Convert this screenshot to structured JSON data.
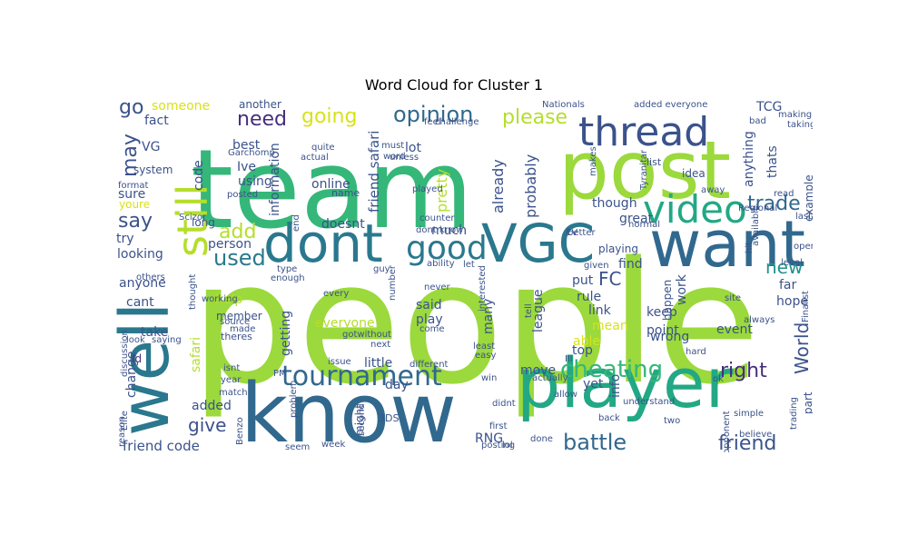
{
  "title": "Word Cloud for Cluster 1",
  "words": [
    {
      "text": "people",
      "color": "#9bd93c"
    },
    {
      "text": "team",
      "color": "#35b779"
    },
    {
      "text": "post",
      "color": "#9bd93c"
    },
    {
      "text": "know",
      "color": "#31688e"
    },
    {
      "text": "player",
      "color": "#22a884"
    },
    {
      "text": "want",
      "color": "#31688e"
    },
    {
      "text": "well",
      "color": "#2a788e"
    },
    {
      "text": "dont",
      "color": "#2a788e"
    },
    {
      "text": "VGC",
      "color": "#2a788e"
    },
    {
      "text": "thread",
      "color": "#3b528b"
    },
    {
      "text": "still",
      "color": "#b5de2b"
    },
    {
      "text": "video",
      "color": "#22a884"
    },
    {
      "text": "good",
      "color": "#2a788e"
    },
    {
      "text": "tournament",
      "color": "#31688e"
    },
    {
      "text": "cheating",
      "color": "#35b779"
    },
    {
      "text": "battle",
      "color": "#31688e"
    },
    {
      "text": "opinion",
      "color": "#31688e"
    },
    {
      "text": "please",
      "color": "#b5de2b"
    },
    {
      "text": "need",
      "color": "#472d7b"
    },
    {
      "text": "going",
      "color": "#d8e219"
    },
    {
      "text": "used",
      "color": "#2a788e"
    },
    {
      "text": "add",
      "color": "#b5de2b"
    },
    {
      "text": "say",
      "color": "#3b528b"
    },
    {
      "text": "may",
      "color": "#3b528b"
    },
    {
      "text": "go",
      "color": "#3b528b"
    },
    {
      "text": "right",
      "color": "#472d7b"
    },
    {
      "text": "friend",
      "color": "#3b528b"
    },
    {
      "text": "trade",
      "color": "#31688e"
    },
    {
      "text": "FC",
      "color": "#3b528b"
    },
    {
      "text": "new",
      "color": "#21918c"
    },
    {
      "text": "World",
      "color": "#3b528b"
    },
    {
      "text": "give",
      "color": "#3b528b"
    },
    {
      "text": "friend code",
      "color": "#3b528b"
    },
    {
      "text": "friend safari",
      "color": "#3b528b"
    },
    {
      "text": "someone",
      "color": "#d8e219"
    },
    {
      "text": "fact",
      "color": "#3b528b"
    },
    {
      "text": "VG",
      "color": "#3b528b"
    },
    {
      "text": "system",
      "color": "#3b528b"
    },
    {
      "text": "sure",
      "color": "#3b528b"
    },
    {
      "text": "youre",
      "color": "#d8e219"
    },
    {
      "text": "try",
      "color": "#3b528b"
    },
    {
      "text": "looking",
      "color": "#3b528b"
    },
    {
      "text": "anyone",
      "color": "#3b528b"
    },
    {
      "text": "cant",
      "color": "#3b528b"
    },
    {
      "text": "take",
      "color": "#3b528b"
    },
    {
      "text": "Id",
      "color": "#472d7b"
    },
    {
      "text": "change",
      "color": "#3b528b"
    },
    {
      "text": "added",
      "color": "#3b528b"
    },
    {
      "text": "safari",
      "color": "#b5de2b"
    },
    {
      "text": "help",
      "color": "#b5de2b"
    },
    {
      "text": "person",
      "color": "#3b528b"
    },
    {
      "text": "long",
      "color": "#3b528b"
    },
    {
      "text": "best",
      "color": "#3b528b"
    },
    {
      "text": "Ive",
      "color": "#3b528b"
    },
    {
      "text": "using",
      "color": "#3b528b"
    },
    {
      "text": "code",
      "color": "#3b528b"
    },
    {
      "text": "another",
      "color": "#3b528b"
    },
    {
      "text": "information",
      "color": "#3b528b"
    },
    {
      "text": "online",
      "color": "#3b528b"
    },
    {
      "text": "doesnt",
      "color": "#3b528b"
    },
    {
      "text": "name",
      "color": "#3b528b"
    },
    {
      "text": "lot",
      "color": "#3b528b"
    },
    {
      "text": "pretty",
      "color": "#b5de2b"
    },
    {
      "text": "already",
      "color": "#3b528b"
    },
    {
      "text": "probably",
      "color": "#3b528b"
    },
    {
      "text": "much",
      "color": "#3b528b"
    },
    {
      "text": "said",
      "color": "#3b528b"
    },
    {
      "text": "play",
      "color": "#3b528b"
    },
    {
      "text": "everyone",
      "color": "#b5de2b"
    },
    {
      "text": "getting",
      "color": "#3b528b"
    },
    {
      "text": "member",
      "color": "#3b528b"
    },
    {
      "text": "theres",
      "color": "#3b528b"
    },
    {
      "text": "many",
      "color": "#3b528b"
    },
    {
      "text": "league",
      "color": "#3b528b"
    },
    {
      "text": "RNG",
      "color": "#3b528b"
    },
    {
      "text": "move",
      "color": "#3b528b"
    },
    {
      "text": "little",
      "color": "#3b528b"
    },
    {
      "text": "day",
      "color": "#3b528b"
    },
    {
      "text": "3DS",
      "color": "#3b528b"
    },
    {
      "text": "yet",
      "color": "#3b528b"
    },
    {
      "text": "info",
      "color": "#3b528b"
    },
    {
      "text": "top",
      "color": "#3b528b"
    },
    {
      "text": "able",
      "color": "#d8e219"
    },
    {
      "text": "mean",
      "color": "#d8e219"
    },
    {
      "text": "point",
      "color": "#3b528b"
    },
    {
      "text": "wrong",
      "color": "#3b528b"
    },
    {
      "text": "keep",
      "color": "#3b528b"
    },
    {
      "text": "link",
      "color": "#3b528b"
    },
    {
      "text": "rule",
      "color": "#3b528b"
    },
    {
      "text": "put",
      "color": "#3b528b"
    },
    {
      "text": "find",
      "color": "#3b528b"
    },
    {
      "text": "playing",
      "color": "#3b528b"
    },
    {
      "text": "great",
      "color": "#3b528b"
    },
    {
      "text": "though",
      "color": "#3b528b"
    },
    {
      "text": "work",
      "color": "#3b528b"
    },
    {
      "text": "happen",
      "color": "#3b528b"
    },
    {
      "text": "event",
      "color": "#3b528b"
    },
    {
      "text": "hope",
      "color": "#3b528b"
    },
    {
      "text": "far",
      "color": "#3b528b"
    },
    {
      "text": "part",
      "color": "#3b528b"
    },
    {
      "text": "example",
      "color": "#3b528b"
    },
    {
      "text": "TCG",
      "color": "#3b528b"
    },
    {
      "text": "thats",
      "color": "#3b528b"
    },
    {
      "text": "anything",
      "color": "#3b528b"
    },
    {
      "text": "idea",
      "color": "#3b528b"
    },
    {
      "text": "list",
      "color": "#3b528b"
    },
    {
      "text": "Garchomp",
      "color": "#3b528b"
    },
    {
      "text": "quite",
      "color": "#3b528b"
    },
    {
      "text": "actual",
      "color": "#3b528b"
    },
    {
      "text": "unless",
      "color": "#3b528b"
    },
    {
      "text": "word",
      "color": "#3b528b"
    },
    {
      "text": "must",
      "color": "#3b528b"
    },
    {
      "text": "played",
      "color": "#3b528b"
    },
    {
      "text": "posted",
      "color": "#3b528b"
    },
    {
      "text": "format",
      "color": "#3b528b"
    },
    {
      "text": "Nationals",
      "color": "#3b528b"
    },
    {
      "text": "challenge",
      "color": "#3b528b"
    },
    {
      "text": "feel",
      "color": "#3b528b"
    },
    {
      "text": "added everyone",
      "color": "#3b528b"
    },
    {
      "text": "making",
      "color": "#3b528b"
    },
    {
      "text": "taking",
      "color": "#3b528b"
    },
    {
      "text": "bad",
      "color": "#3b528b"
    },
    {
      "text": "makes",
      "color": "#3b528b"
    },
    {
      "text": "Tyranitar",
      "color": "#3b528b"
    },
    {
      "text": "read",
      "color": "#3b528b"
    },
    {
      "text": "last",
      "color": "#3b528b"
    },
    {
      "text": "Regional",
      "color": "#3b528b"
    },
    {
      "text": "away",
      "color": "#3b528b"
    },
    {
      "text": "available",
      "color": "#3b528b"
    },
    {
      "text": "open",
      "color": "#3b528b"
    },
    {
      "text": "level",
      "color": "#3b528b"
    },
    {
      "text": "hit",
      "color": "#3b528b"
    },
    {
      "text": "normal",
      "color": "#3b528b"
    },
    {
      "text": "better",
      "color": "#3b528b"
    },
    {
      "text": "EV",
      "color": "#3b528b"
    },
    {
      "text": "counter",
      "color": "#3b528b"
    },
    {
      "text": "dont know",
      "color": "#3b528b"
    },
    {
      "text": "ability",
      "color": "#3b528b"
    },
    {
      "text": "let",
      "color": "#3b528b"
    },
    {
      "text": "given",
      "color": "#3b528b"
    },
    {
      "text": "site",
      "color": "#3b528b"
    },
    {
      "text": "always",
      "color": "#3b528b"
    },
    {
      "text": "Finalist",
      "color": "#3b528b"
    },
    {
      "text": "hard",
      "color": "#3b528b"
    },
    {
      "text": "ok",
      "color": "#3b528b"
    },
    {
      "text": "trading",
      "color": "#3b528b"
    },
    {
      "text": "simple",
      "color": "#3b528b"
    },
    {
      "text": "believe",
      "color": "#3b528b"
    },
    {
      "text": "opponent",
      "color": "#3b528b"
    },
    {
      "text": "two",
      "color": "#3b528b"
    },
    {
      "text": "back",
      "color": "#3b528b"
    },
    {
      "text": "understand",
      "color": "#3b528b"
    },
    {
      "text": "allow",
      "color": "#3b528b"
    },
    {
      "text": "actually",
      "color": "#3b528b"
    },
    {
      "text": "Ill",
      "color": "#3b528b"
    },
    {
      "text": "win",
      "color": "#3b528b"
    },
    {
      "text": "didnt",
      "color": "#3b528b"
    },
    {
      "text": "first",
      "color": "#3b528b"
    },
    {
      "text": "done",
      "color": "#3b528b"
    },
    {
      "text": "lol",
      "color": "#3b528b"
    },
    {
      "text": "posting",
      "color": "#3b528b"
    },
    {
      "text": "easy",
      "color": "#3b528b"
    },
    {
      "text": "least",
      "color": "#3b528b"
    },
    {
      "text": "interested",
      "color": "#3b528b"
    },
    {
      "text": "tell",
      "color": "#3b528b"
    },
    {
      "text": "never",
      "color": "#3b528b"
    },
    {
      "text": "come",
      "color": "#3b528b"
    },
    {
      "text": "different",
      "color": "#3b528b"
    },
    {
      "text": "issue",
      "color": "#3b528b"
    },
    {
      "text": "next",
      "color": "#3b528b"
    },
    {
      "text": "gotwithout",
      "color": "#3b528b"
    },
    {
      "text": "number",
      "color": "#3b528b"
    },
    {
      "text": "guy",
      "color": "#3b528b"
    },
    {
      "text": "every",
      "color": "#3b528b"
    },
    {
      "text": "enough",
      "color": "#3b528b"
    },
    {
      "text": "type",
      "color": "#3b528b"
    },
    {
      "text": "end",
      "color": "#3b528b"
    },
    {
      "text": "might",
      "color": "#3b528b"
    },
    {
      "text": "second",
      "color": "#3b528b"
    },
    {
      "text": "week",
      "color": "#3b528b"
    },
    {
      "text": "seem",
      "color": "#3b528b"
    },
    {
      "text": "problem",
      "color": "#3b528b"
    },
    {
      "text": "Benzo",
      "color": "#3b528b"
    },
    {
      "text": "PM",
      "color": "#3b528b"
    },
    {
      "text": "isnt",
      "color": "#3b528b"
    },
    {
      "text": "match",
      "color": "#3b528b"
    },
    {
      "text": "year",
      "color": "#3b528b"
    },
    {
      "text": "made",
      "color": "#3b528b"
    },
    {
      "text": "source",
      "color": "#3b528b"
    },
    {
      "text": "thought",
      "color": "#3b528b"
    },
    {
      "text": "working",
      "color": "#3b528b"
    },
    {
      "text": "Scizor",
      "color": "#3b528b"
    },
    {
      "text": "others",
      "color": "#3b528b"
    },
    {
      "text": "look",
      "color": "#3b528b"
    },
    {
      "text": "saying",
      "color": "#3b528b"
    },
    {
      "text": "Elite",
      "color": "#3b528b"
    },
    {
      "text": "discussion",
      "color": "#3b528b"
    },
    {
      "text": "reason",
      "color": "#3b528b"
    }
  ]
}
